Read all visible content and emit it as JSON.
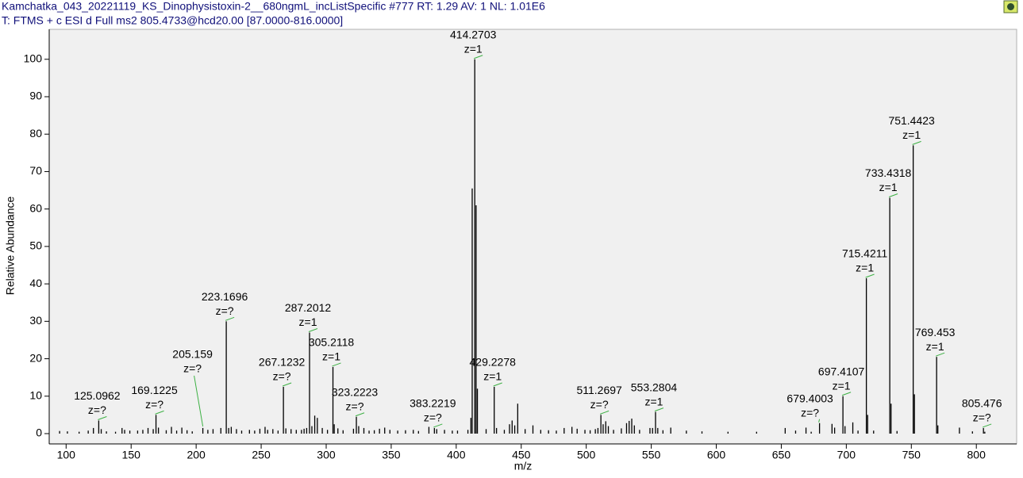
{
  "header": {
    "line1": "Kamchatka_043_20221119_KS_Dinophysistoxin-2__680ngmL_incListSpecific #777   RT: 1.29   AV: 1   NL: 1.01E6",
    "line2": "T: FTMS + c ESI d Full ms2 805.4733@hcd20.00 [87.0000-816.0000]"
  },
  "chart_data": {
    "type": "stick",
    "x_label": "m/z",
    "y_label": "Relative Abundance",
    "xlim": [
      87,
      831
    ],
    "ylim": [
      0,
      108
    ],
    "xticks": [
      100,
      150,
      200,
      250,
      300,
      350,
      400,
      450,
      500,
      550,
      600,
      650,
      700,
      750,
      800
    ],
    "yticks": [
      0,
      10,
      20,
      30,
      40,
      50,
      60,
      70,
      80,
      90,
      100
    ],
    "color": "#000000",
    "peaks": {
      "x": [
        125.0962,
        169.1225,
        205.159,
        223.1696,
        267.1232,
        287.2012,
        305.2118,
        323.2223,
        383.2219,
        414.2703,
        429.2278,
        511.2697,
        553.2804,
        679.4003,
        697.4107,
        715.4211,
        733.4318,
        751.4423,
        769.453,
        805.476
      ],
      "values": [
        3.5,
        5,
        1.5,
        30,
        12.5,
        27,
        17.8,
        4.5,
        1.5,
        100,
        12.5,
        5,
        5.8,
        2.8,
        10,
        41.5,
        63,
        77,
        20.5,
        1.5
      ],
      "charges": [
        "z=?",
        "z=?",
        "z=?",
        "z=?",
        "z=?",
        "z=1",
        "z=1",
        "z=?",
        "z=?",
        "z=1",
        "z=1",
        "z=?",
        "z=1",
        "z=?",
        "z=1",
        "z=1",
        "z=1",
        "z=1",
        "z=1",
        "z=?"
      ]
    },
    "minor_peaks": {
      "x": [
        95,
        101,
        110,
        117,
        121,
        127,
        131,
        138,
        143,
        145,
        149,
        155,
        159,
        163,
        167,
        171,
        177,
        181,
        185,
        189,
        193,
        197,
        209,
        213,
        219,
        225,
        227,
        231,
        235,
        241,
        245,
        249,
        253,
        255,
        259,
        263,
        269,
        273,
        277,
        281,
        283,
        285,
        289,
        291.2,
        293.2,
        297,
        301,
        306.2,
        309,
        313,
        321,
        325,
        329,
        333,
        337,
        341,
        345,
        349,
        355,
        361,
        367,
        371,
        379,
        385,
        391,
        397,
        401,
        409,
        411.3,
        412.3,
        415.3,
        416.3,
        423,
        431,
        437,
        441,
        443,
        445,
        447.3,
        453,
        459,
        465,
        471,
        477,
        483,
        489,
        493,
        499,
        503,
        507,
        509,
        513,
        515,
        517,
        521,
        527,
        531,
        533,
        535,
        537,
        541,
        549,
        551,
        555,
        559,
        565,
        577,
        589,
        609,
        631,
        653,
        661,
        669,
        673,
        689,
        691,
        699,
        705,
        709,
        716.4,
        721,
        734.4,
        739,
        752.4,
        770.4,
        787,
        797,
        806.5
      ],
      "values": [
        0.7,
        0.6,
        0.5,
        0.8,
        1.5,
        1.2,
        0.6,
        0.5,
        1.5,
        1.0,
        0.8,
        0.8,
        1.0,
        1.5,
        1.2,
        1.6,
        0.9,
        1.8,
        0.8,
        1.6,
        0.9,
        0.6,
        1.0,
        1.2,
        1.5,
        1.5,
        1.8,
        1.2,
        0.8,
        1.0,
        0.8,
        1.3,
        1.8,
        1.0,
        1.2,
        0.8,
        1.4,
        1.2,
        1.0,
        1.0,
        1.3,
        1.5,
        2.0,
        4.8,
        4.2,
        1.5,
        1.0,
        2.5,
        1.4,
        0.9,
        1.3,
        2.0,
        1.5,
        0.8,
        0.9,
        1.3,
        1.6,
        1.0,
        0.8,
        0.9,
        1.0,
        0.7,
        1.8,
        1.2,
        1.0,
        0.8,
        0.8,
        1.0,
        4.2,
        65.5,
        61,
        12,
        1.2,
        1.5,
        1.0,
        2.5,
        3.5,
        2.2,
        8,
        1.2,
        2.2,
        1.0,
        0.9,
        0.8,
        1.5,
        1.8,
        1.3,
        1.0,
        0.9,
        1.2,
        1.5,
        2.5,
        3.3,
        2.0,
        1.0,
        1.4,
        2.8,
        3.4,
        4.0,
        2.2,
        1.0,
        1.5,
        1.5,
        1.5,
        0.9,
        1.6,
        0.8,
        0.6,
        0.5,
        0.5,
        1.5,
        0.8,
        1.6,
        0.5,
        2.6,
        1.6,
        2.0,
        3.0,
        0.8,
        5,
        0.8,
        8,
        0.7,
        10.5,
        2.2,
        1.6,
        0.6,
        0.5
      ]
    }
  }
}
